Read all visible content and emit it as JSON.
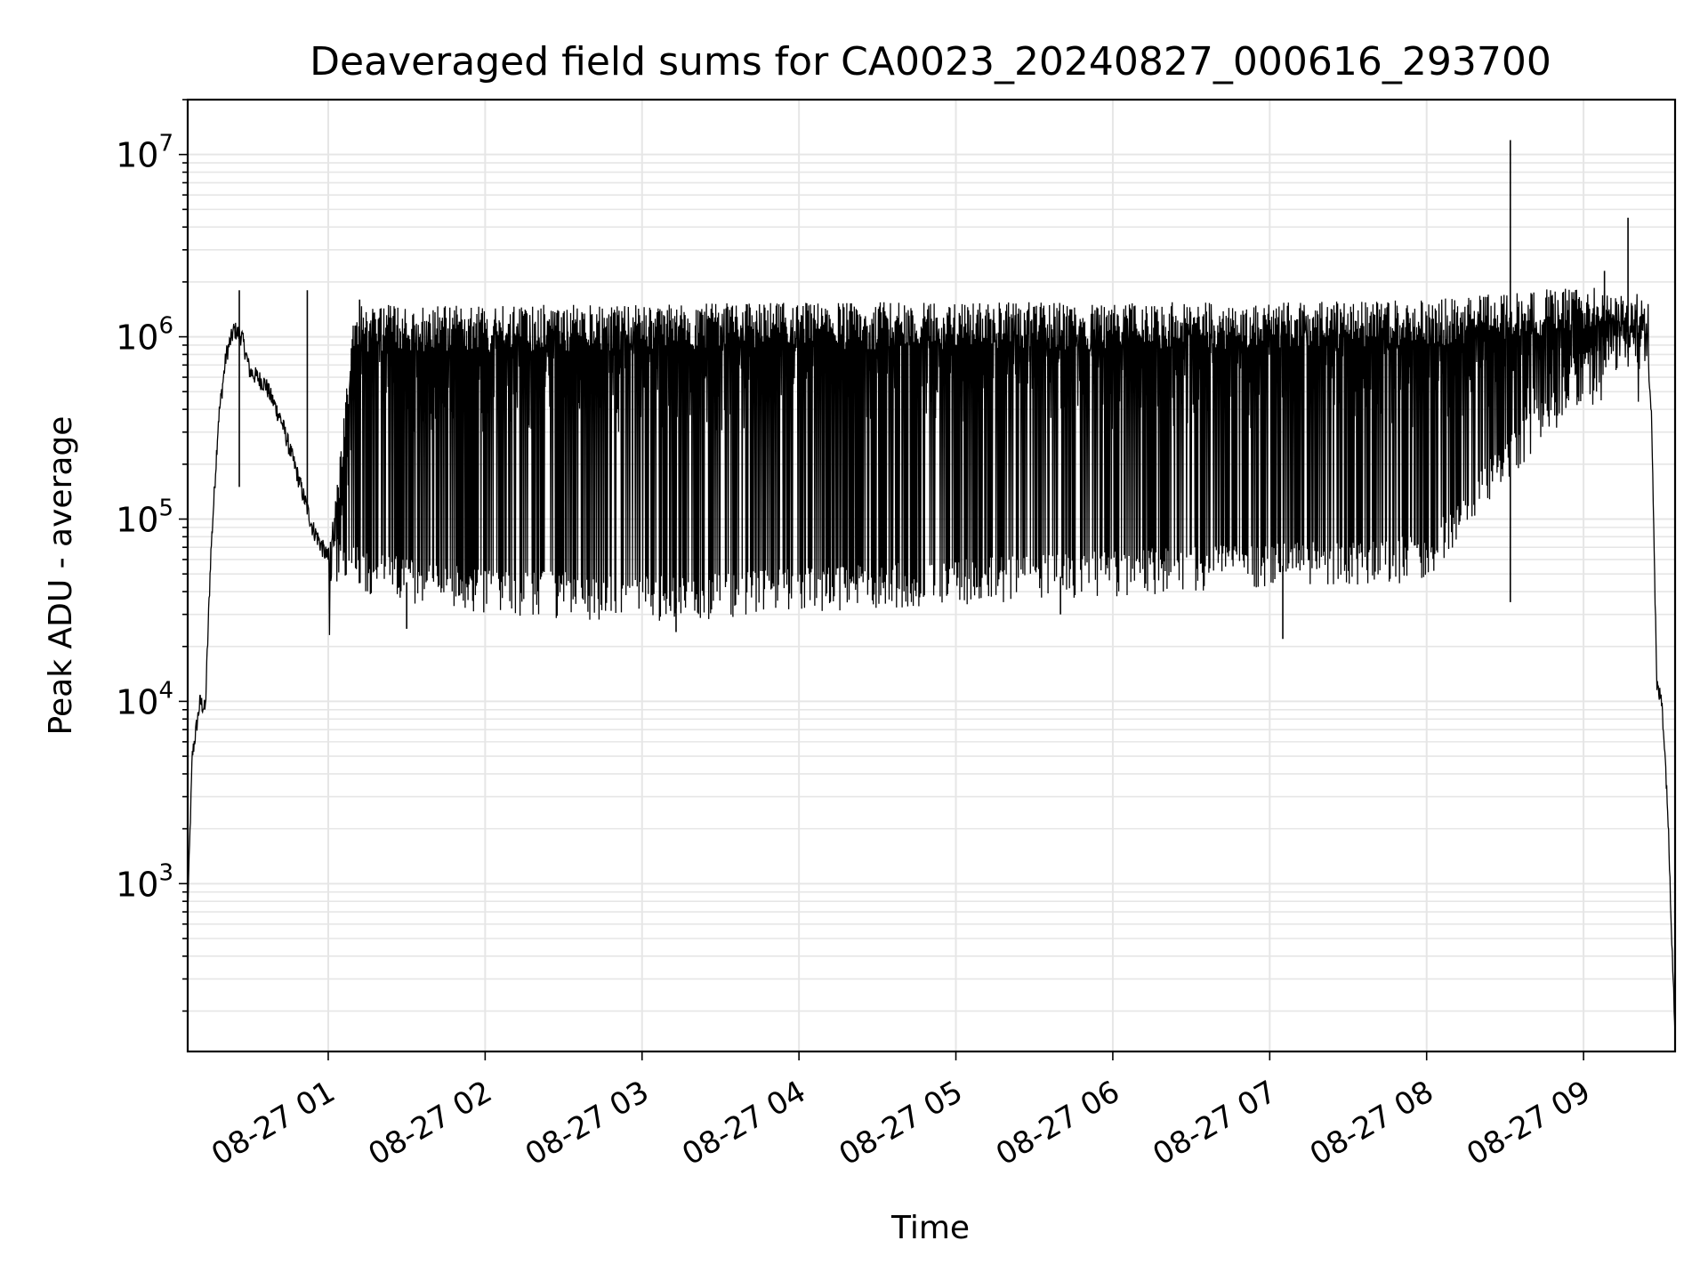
{
  "chart_data": {
    "type": "line",
    "title": "Deaveraged field sums for CA0023_20240827_000616_293700",
    "xlabel": "Time",
    "ylabel": "Peak ADU - average",
    "x_range": [
      "2024-08-27 00:06:16",
      "2024-08-27 09:35:00"
    ],
    "ylim": [
      120,
      20000000
    ],
    "yscale": "log",
    "grid": true,
    "line_color": "#000000",
    "x_ticks": [
      {
        "t": "2024-08-27 01:00",
        "label": "08-27 01"
      },
      {
        "t": "2024-08-27 02:00",
        "label": "08-27 02"
      },
      {
        "t": "2024-08-27 03:00",
        "label": "08-27 03"
      },
      {
        "t": "2024-08-27 04:00",
        "label": "08-27 04"
      },
      {
        "t": "2024-08-27 05:00",
        "label": "08-27 05"
      },
      {
        "t": "2024-08-27 06:00",
        "label": "08-27 06"
      },
      {
        "t": "2024-08-27 07:00",
        "label": "08-27 07"
      },
      {
        "t": "2024-08-27 08:00",
        "label": "08-27 08"
      },
      {
        "t": "2024-08-27 09:00",
        "label": "08-27 09"
      }
    ],
    "y_ticks": [
      {
        "value": 1000,
        "base": "10",
        "exp": "3"
      },
      {
        "value": 10000,
        "base": "10",
        "exp": "4"
      },
      {
        "value": 100000,
        "base": "10",
        "exp": "5"
      },
      {
        "value": 1000000,
        "base": "10",
        "exp": "6"
      },
      {
        "value": 10000000,
        "base": "10",
        "exp": "7"
      }
    ],
    "series": [
      {
        "baseline": [
          {
            "t": "2024-08-27 00:06:16",
            "y": 700
          },
          {
            "t": "2024-08-27 00:08",
            "y": 5000
          },
          {
            "t": "2024-08-27 00:11",
            "y": 10000
          },
          {
            "t": "2024-08-27 00:13",
            "y": 9000
          },
          {
            "t": "2024-08-27 00:15",
            "y": 60000
          },
          {
            "t": "2024-08-27 00:18",
            "y": 350000
          },
          {
            "t": "2024-08-27 00:21",
            "y": 800000
          },
          {
            "t": "2024-08-27 00:24",
            "y": 1100000
          },
          {
            "t": "2024-08-27 00:27",
            "y": 1000000
          },
          {
            "t": "2024-08-27 00:30",
            "y": 650000
          },
          {
            "t": "2024-08-27 00:36",
            "y": 550000
          },
          {
            "t": "2024-08-27 00:42",
            "y": 350000
          },
          {
            "t": "2024-08-27 00:48",
            "y": 180000
          },
          {
            "t": "2024-08-27 00:54",
            "y": 90000
          },
          {
            "t": "2024-08-27 01:00",
            "y": 60000
          },
          {
            "t": "2024-08-27 01:30",
            "y": 45000
          },
          {
            "t": "2024-08-27 02:00",
            "y": 40000
          },
          {
            "t": "2024-08-27 02:30",
            "y": 38000
          },
          {
            "t": "2024-08-27 03:00",
            "y": 36000
          },
          {
            "t": "2024-08-27 03:30",
            "y": 38000
          },
          {
            "t": "2024-08-27 04:00",
            "y": 40000
          },
          {
            "t": "2024-08-27 05:00",
            "y": 45000
          },
          {
            "t": "2024-08-27 06:00",
            "y": 50000
          },
          {
            "t": "2024-08-27 07:00",
            "y": 55000
          },
          {
            "t": "2024-08-27 08:00",
            "y": 60000
          },
          {
            "t": "2024-08-27 08:40",
            "y": 300000
          },
          {
            "t": "2024-08-27 09:00",
            "y": 600000
          },
          {
            "t": "2024-08-27 09:15",
            "y": 900000
          },
          {
            "t": "2024-08-27 09:20",
            "y": 700000
          },
          {
            "t": "2024-08-27 09:24",
            "y": 1000000
          },
          {
            "t": "2024-08-27 09:26",
            "y": 400000
          },
          {
            "t": "2024-08-27 09:28",
            "y": 12000
          },
          {
            "t": "2024-08-27 09:30",
            "y": 10000
          },
          {
            "t": "2024-08-27 09:32",
            "y": 3000
          },
          {
            "t": "2024-08-27 09:35",
            "y": 150
          }
        ],
        "upper_envelope": [
          {
            "t": "2024-08-27 01:00",
            "y": 60000
          },
          {
            "t": "2024-08-27 01:10",
            "y": 1500000
          },
          {
            "t": "2024-08-27 02:00",
            "y": 1500000
          },
          {
            "t": "2024-08-27 03:00",
            "y": 1500000
          },
          {
            "t": "2024-08-27 04:00",
            "y": 1550000
          },
          {
            "t": "2024-08-27 05:00",
            "y": 1550000
          },
          {
            "t": "2024-08-27 06:00",
            "y": 1550000
          },
          {
            "t": "2024-08-27 07:00",
            "y": 1550000
          },
          {
            "t": "2024-08-27 08:00",
            "y": 1600000
          },
          {
            "t": "2024-08-27 09:00",
            "y": 1900000
          },
          {
            "t": "2024-08-27 09:25",
            "y": 1700000
          }
        ],
        "spikes": [
          {
            "t": "2024-08-27 00:26",
            "y": 1800000
          },
          {
            "t": "2024-08-27 00:26",
            "y": 150000
          },
          {
            "t": "2024-08-27 00:52",
            "y": 1800000
          },
          {
            "t": "2024-08-27 01:12",
            "y": 1600000
          },
          {
            "t": "2024-08-27 01:30",
            "y": 25000
          },
          {
            "t": "2024-08-27 03:13",
            "y": 24000
          },
          {
            "t": "2024-08-27 05:40",
            "y": 30000
          },
          {
            "t": "2024-08-27 07:05",
            "y": 22000
          },
          {
            "t": "2024-08-27 08:32",
            "y": 12000000
          },
          {
            "t": "2024-08-27 08:32",
            "y": 35000
          },
          {
            "t": "2024-08-27 09:17",
            "y": 4500000
          },
          {
            "t": "2024-08-27 09:08",
            "y": 2300000
          }
        ]
      }
    ]
  }
}
